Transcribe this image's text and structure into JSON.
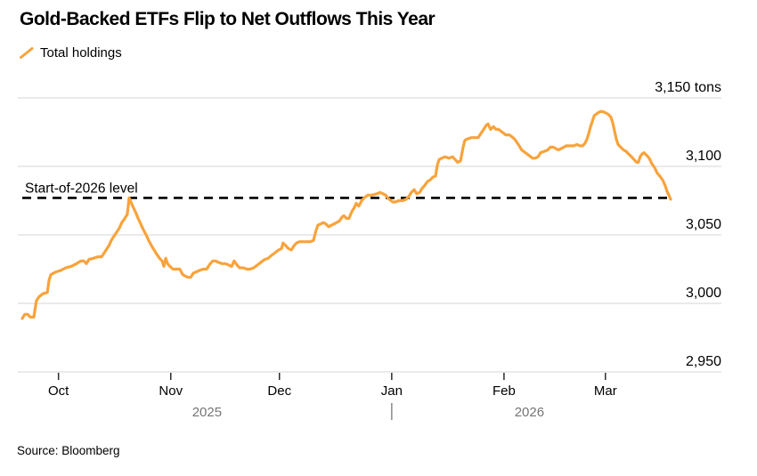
{
  "title": "Gold-Backed ETFs Flip to Net Outflows This Year",
  "legend": {
    "label": "Total holdings"
  },
  "source": "Source: Bloomberg",
  "colors": {
    "series": "#F8A33C",
    "grid": "#D4D4D4",
    "tick": "#2B2B2B",
    "year_text": "#757575",
    "reference": "#000000"
  },
  "chart_data": {
    "type": "line",
    "title": "Gold-Backed ETFs Flip to Net Outflows This Year",
    "ylabel": "tons",
    "legend_position": "top-left",
    "grid": true,
    "x_start_date": "2025-09-22",
    "x_end_date": "2026-03-20",
    "x_domain_days": [
      0,
      179
    ],
    "x_ticks": [
      {
        "label": "Oct",
        "day": 10
      },
      {
        "label": "Nov",
        "day": 41
      },
      {
        "label": "Dec",
        "day": 71
      },
      {
        "label": "Jan",
        "day": 102
      },
      {
        "label": "Feb",
        "day": 133
      },
      {
        "label": "Mar",
        "day": 161
      }
    ],
    "years": [
      {
        "label": "2025",
        "day": 51
      },
      {
        "label": "2026",
        "day": 140
      }
    ],
    "year_divider_day": 102,
    "ylim": [
      2950,
      3150
    ],
    "y_ticks": [
      2950,
      3000,
      3050,
      3100,
      3150
    ],
    "y_tick_labels": [
      "2,950",
      "3,000",
      "3,050",
      "3,100",
      "3,150 tons"
    ],
    "reference_line": {
      "label": "Start-of-2026 level",
      "value": 3077,
      "style": "dashed"
    },
    "series": [
      {
        "name": "Total holdings",
        "unit": "tons",
        "points": [
          [
            0,
            2989
          ],
          [
            0.7,
            2992
          ],
          [
            1.5,
            2992
          ],
          [
            2.2,
            2990
          ],
          [
            3.2,
            2990
          ],
          [
            3.9,
            3002
          ],
          [
            4.7,
            3005
          ],
          [
            5.7,
            3007
          ],
          [
            6.9,
            3008
          ],
          [
            7.4,
            3017
          ],
          [
            7.9,
            3021
          ],
          [
            9.3,
            3023
          ],
          [
            10.6,
            3024
          ],
          [
            12,
            3026
          ],
          [
            13.5,
            3027
          ],
          [
            15,
            3029
          ],
          [
            16.2,
            3031
          ],
          [
            17,
            3031
          ],
          [
            17.7,
            3029
          ],
          [
            18.4,
            3032
          ],
          [
            19.7,
            3033
          ],
          [
            20.9,
            3034
          ],
          [
            21.9,
            3034
          ],
          [
            22.9,
            3038
          ],
          [
            23.9,
            3042
          ],
          [
            24.6,
            3046
          ],
          [
            25.3,
            3049
          ],
          [
            26.1,
            3052
          ],
          [
            26.8,
            3055
          ],
          [
            27.5,
            3059
          ],
          [
            28.3,
            3062
          ],
          [
            29,
            3065
          ],
          [
            29.5,
            3077
          ],
          [
            30,
            3074
          ],
          [
            30.5,
            3071
          ],
          [
            31.2,
            3067
          ],
          [
            32,
            3062
          ],
          [
            32.7,
            3058
          ],
          [
            33.4,
            3054
          ],
          [
            34.2,
            3050
          ],
          [
            34.9,
            3046
          ],
          [
            35.7,
            3042
          ],
          [
            36.4,
            3039
          ],
          [
            37.1,
            3036
          ],
          [
            37.9,
            3033
          ],
          [
            38.6,
            3031
          ],
          [
            39.1,
            3027
          ],
          [
            39.6,
            3033
          ],
          [
            40.1,
            3029
          ],
          [
            40.8,
            3027
          ],
          [
            41.6,
            3025
          ],
          [
            42.5,
            3025
          ],
          [
            43.5,
            3025
          ],
          [
            44.3,
            3021
          ],
          [
            45,
            3020
          ],
          [
            45.7,
            3019
          ],
          [
            46.5,
            3019
          ],
          [
            47.2,
            3022
          ],
          [
            48,
            3023
          ],
          [
            48.9,
            3024
          ],
          [
            49.9,
            3025
          ],
          [
            50.9,
            3025
          ],
          [
            51.9,
            3029
          ],
          [
            52.6,
            3031
          ],
          [
            53.4,
            3031
          ],
          [
            54.1,
            3030
          ],
          [
            55.1,
            3029
          ],
          [
            56.1,
            3029
          ],
          [
            57,
            3028
          ],
          [
            57.8,
            3027
          ],
          [
            58.5,
            3031
          ],
          [
            59.3,
            3028
          ],
          [
            60,
            3026
          ],
          [
            61,
            3026
          ],
          [
            62,
            3025
          ],
          [
            62.9,
            3025
          ],
          [
            63.9,
            3026
          ],
          [
            64.9,
            3028
          ],
          [
            65.9,
            3030
          ],
          [
            66.9,
            3032
          ],
          [
            67.9,
            3033
          ],
          [
            68.8,
            3035
          ],
          [
            69.8,
            3037
          ],
          [
            70.8,
            3039
          ],
          [
            71.6,
            3040
          ],
          [
            72,
            3044
          ],
          [
            72.8,
            3042
          ],
          [
            73.5,
            3040
          ],
          [
            74.3,
            3039
          ],
          [
            75,
            3042
          ],
          [
            75.7,
            3044
          ],
          [
            76.5,
            3045
          ],
          [
            77.5,
            3045
          ],
          [
            78.4,
            3045
          ],
          [
            79.4,
            3045
          ],
          [
            80.4,
            3046
          ],
          [
            81.1,
            3053
          ],
          [
            81.6,
            3057
          ],
          [
            82.4,
            3058
          ],
          [
            83.1,
            3059
          ],
          [
            83.8,
            3058
          ],
          [
            84.6,
            3056
          ],
          [
            85.3,
            3057
          ],
          [
            86.1,
            3058
          ],
          [
            86.8,
            3059
          ],
          [
            87.5,
            3060
          ],
          [
            88.3,
            3063
          ],
          [
            88.8,
            3064
          ],
          [
            89.5,
            3062
          ],
          [
            90.2,
            3062
          ],
          [
            91,
            3067
          ],
          [
            91.7,
            3070
          ],
          [
            92.2,
            3073
          ],
          [
            92.9,
            3071
          ],
          [
            93.7,
            3075
          ],
          [
            94.4,
            3077
          ],
          [
            95.4,
            3079
          ],
          [
            96.6,
            3079
          ],
          [
            97.9,
            3080
          ],
          [
            98.8,
            3081
          ],
          [
            99.6,
            3080
          ],
          [
            100.3,
            3079
          ],
          [
            101.3,
            3076
          ],
          [
            102.3,
            3074
          ],
          [
            103,
            3074
          ],
          [
            104,
            3075
          ],
          [
            105,
            3075
          ],
          [
            106,
            3076
          ],
          [
            106.7,
            3078
          ],
          [
            107.4,
            3081
          ],
          [
            108.2,
            3083
          ],
          [
            108.9,
            3080
          ],
          [
            109.7,
            3081
          ],
          [
            110.4,
            3084
          ],
          [
            111.1,
            3086
          ],
          [
            111.9,
            3089
          ],
          [
            112.6,
            3090
          ],
          [
            113.3,
            3092
          ],
          [
            114.1,
            3093
          ],
          [
            114.6,
            3101
          ],
          [
            115.1,
            3105
          ],
          [
            115.8,
            3106
          ],
          [
            116.8,
            3107
          ],
          [
            117.8,
            3106
          ],
          [
            118.8,
            3107
          ],
          [
            119.5,
            3105
          ],
          [
            120.2,
            3103
          ],
          [
            121,
            3104
          ],
          [
            121.7,
            3114
          ],
          [
            122.2,
            3119
          ],
          [
            122.9,
            3120
          ],
          [
            123.9,
            3121
          ],
          [
            124.9,
            3121
          ],
          [
            125.9,
            3121
          ],
          [
            126.6,
            3124
          ],
          [
            127.4,
            3127
          ],
          [
            128.1,
            3130
          ],
          [
            128.6,
            3131
          ],
          [
            129.3,
            3127
          ],
          [
            130.1,
            3129
          ],
          [
            130.8,
            3127
          ],
          [
            131.5,
            3127
          ],
          [
            132.5,
            3125
          ],
          [
            133.5,
            3123
          ],
          [
            134.5,
            3123
          ],
          [
            135.5,
            3121
          ],
          [
            136.2,
            3119
          ],
          [
            137.2,
            3115
          ],
          [
            137.9,
            3112
          ],
          [
            138.9,
            3110
          ],
          [
            139.9,
            3108
          ],
          [
            140.9,
            3106
          ],
          [
            141.6,
            3106
          ],
          [
            142.4,
            3107
          ],
          [
            143.1,
            3110
          ],
          [
            144.1,
            3111
          ],
          [
            145.1,
            3112
          ],
          [
            145.8,
            3114
          ],
          [
            146.6,
            3114
          ],
          [
            147.3,
            3113
          ],
          [
            148,
            3112
          ],
          [
            148.8,
            3113
          ],
          [
            149.5,
            3114
          ],
          [
            150.2,
            3115
          ],
          [
            151.2,
            3115
          ],
          [
            152.2,
            3115
          ],
          [
            153.2,
            3116
          ],
          [
            153.9,
            3115
          ],
          [
            154.7,
            3115
          ],
          [
            155.4,
            3117
          ],
          [
            155.9,
            3120
          ],
          [
            156.4,
            3124
          ],
          [
            156.9,
            3129
          ],
          [
            157.4,
            3133
          ],
          [
            157.9,
            3137
          ],
          [
            158.4,
            3138
          ],
          [
            158.9,
            3139
          ],
          [
            159.6,
            3140
          ],
          [
            160.3,
            3140
          ],
          [
            161.1,
            3139
          ],
          [
            161.8,
            3138
          ],
          [
            162.5,
            3136
          ],
          [
            163,
            3132
          ],
          [
            163.5,
            3126
          ],
          [
            164,
            3120
          ],
          [
            164.5,
            3116
          ],
          [
            165.2,
            3114
          ],
          [
            166,
            3112
          ],
          [
            166.7,
            3111
          ],
          [
            167.4,
            3109
          ],
          [
            168.2,
            3107
          ],
          [
            168.9,
            3105
          ],
          [
            169.6,
            3103
          ],
          [
            170.1,
            3103
          ],
          [
            170.6,
            3107
          ],
          [
            171.1,
            3109
          ],
          [
            171.6,
            3110
          ],
          [
            172.4,
            3108
          ],
          [
            173.1,
            3106
          ],
          [
            173.8,
            3102
          ],
          [
            174.6,
            3099
          ],
          [
            175.3,
            3095
          ],
          [
            176,
            3093
          ],
          [
            176.8,
            3090
          ],
          [
            177.5,
            3086
          ],
          [
            178,
            3082
          ],
          [
            178.5,
            3079
          ],
          [
            179,
            3076
          ]
        ]
      }
    ]
  }
}
